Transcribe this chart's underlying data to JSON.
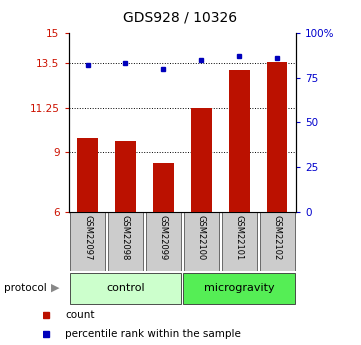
{
  "title": "GDS928 / 10326",
  "samples": [
    "GSM22097",
    "GSM22098",
    "GSM22099",
    "GSM22100",
    "GSM22101",
    "GSM22102"
  ],
  "bar_values": [
    9.7,
    9.55,
    8.45,
    11.25,
    13.15,
    13.55
  ],
  "dot_values": [
    82,
    83,
    80,
    85,
    87,
    86
  ],
  "ylim_left": [
    6,
    15
  ],
  "ylim_right": [
    0,
    100
  ],
  "yticks_left": [
    6,
    9,
    11.25,
    13.5,
    15
  ],
  "ytick_labels_left": [
    "6",
    "9",
    "11.25",
    "13.5",
    "15"
  ],
  "yticks_right": [
    0,
    25,
    50,
    75,
    100
  ],
  "ytick_labels_right": [
    "0",
    "25",
    "50",
    "75",
    "100%"
  ],
  "hlines": [
    9,
    11.25,
    13.5
  ],
  "bar_color": "#bb1100",
  "dot_color": "#0000bb",
  "bar_width": 0.55,
  "groups": [
    {
      "label": "control",
      "indices": [
        0,
        1,
        2
      ],
      "color": "#ccffcc"
    },
    {
      "label": "microgravity",
      "indices": [
        3,
        4,
        5
      ],
      "color": "#55ee55"
    }
  ],
  "protocol_label": "protocol",
  "legend_items": [
    {
      "label": "count",
      "color": "#bb1100"
    },
    {
      "label": "percentile rank within the sample",
      "color": "#0000bb"
    }
  ],
  "left_tick_color": "#cc1100",
  "right_tick_color": "#0000cc",
  "sample_box_color": "#cccccc"
}
